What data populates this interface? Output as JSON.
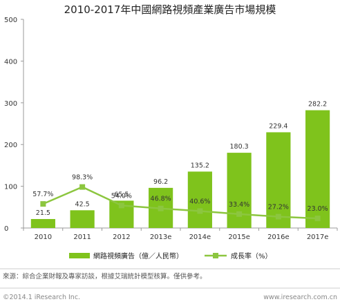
{
  "chart_data": {
    "type": "bar",
    "title": "2010-2017年中國網路視頻產業廣告市場規模",
    "categories": [
      "2010",
      "2011",
      "2012",
      "2013e",
      "2014e",
      "2015e",
      "2016e",
      "2017e"
    ],
    "ylim": [
      0,
      500
    ],
    "yticks": [
      0,
      100,
      200,
      300,
      400,
      500
    ],
    "series": [
      {
        "name": "網路視頻廣告（億／人民幣）",
        "type": "bar",
        "color": "#7fc31c",
        "values": [
          21.5,
          42.5,
          65.5,
          96.2,
          135.2,
          180.3,
          229.4,
          282.2
        ],
        "labels": [
          "21.5",
          "42.5",
          "65.5",
          "96.2",
          "135.2",
          "180.3",
          "229.4",
          "282.2"
        ]
      },
      {
        "name": "成長率（%）",
        "type": "line",
        "color": "#8cc63f",
        "values": [
          57.7,
          98.3,
          54.0,
          46.8,
          40.6,
          33.4,
          27.2,
          23.0
        ],
        "labels": [
          "57.7%",
          "98.3%",
          "54.0%",
          "46.8%",
          "40.6%",
          "33.4%",
          "27.2%",
          "23.0%"
        ]
      }
    ],
    "grid": false,
    "legend_position": "bottom"
  },
  "source_note": "來源：綜合企業財報及專家訪談，根據艾瑞統計模型核算。僅供參考。",
  "footer": {
    "copyright": "©2014.1 iResearch Inc.",
    "website": "www.iresearch.com.cn"
  }
}
